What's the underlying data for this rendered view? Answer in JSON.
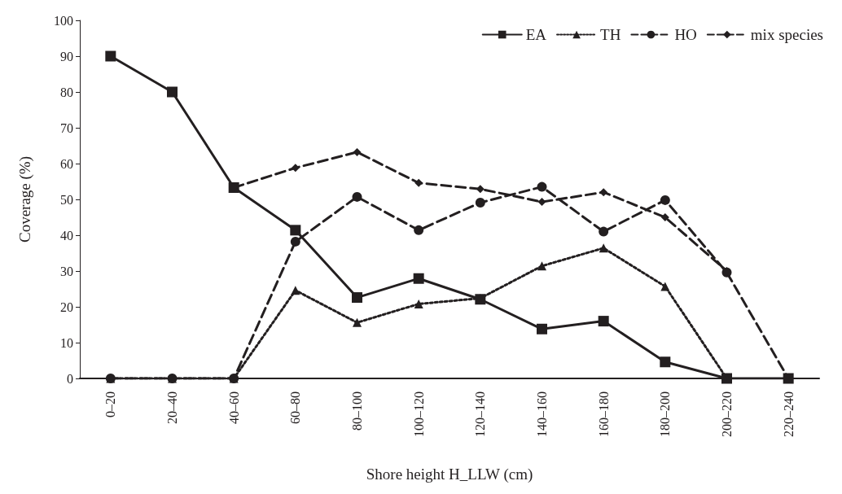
{
  "chart_data": {
    "type": "line",
    "xlabel": "Shore height H_LLW (cm)",
    "ylabel": "Coverage (%)",
    "categories": [
      "0–20",
      "20–40",
      "40–60",
      "60–80",
      "80–100",
      "100–120",
      "120–140",
      "140–160",
      "160–180",
      "180–200",
      "200–220",
      "220–240"
    ],
    "ylim": [
      0,
      100
    ],
    "yticks": [
      0,
      10,
      20,
      30,
      40,
      50,
      60,
      70,
      80,
      90,
      100
    ],
    "grid": false,
    "legend": "top right",
    "series": [
      {
        "name": "EA",
        "color": "#231f20",
        "marker": "square",
        "line_style": "solid",
        "values": [
          90,
          80,
          53.3,
          41.4,
          22.6,
          27.9,
          22.1,
          13.8,
          16,
          4.6,
          0,
          0
        ]
      },
      {
        "name": "TH",
        "color": "#231f20",
        "marker": "triangle",
        "line_style": "dotted",
        "values": [
          0,
          0,
          0,
          24.6,
          15.6,
          20.8,
          22.4,
          31.4,
          36.4,
          25.7,
          0,
          null
        ]
      },
      {
        "name": "HO",
        "color": "#231f20",
        "marker": "circle",
        "line_style": "dashed",
        "values": [
          0,
          0,
          0,
          38.2,
          50.7,
          41.4,
          49.1,
          53.5,
          41,
          49.8,
          29.6,
          0
        ]
      },
      {
        "name": "mix species",
        "color": "#231f20",
        "marker": "diamond",
        "line_style": "dashed",
        "values": [
          null,
          null,
          53.3,
          58.8,
          63.2,
          54.6,
          52.9,
          49.3,
          52,
          45,
          30,
          null
        ]
      }
    ]
  }
}
